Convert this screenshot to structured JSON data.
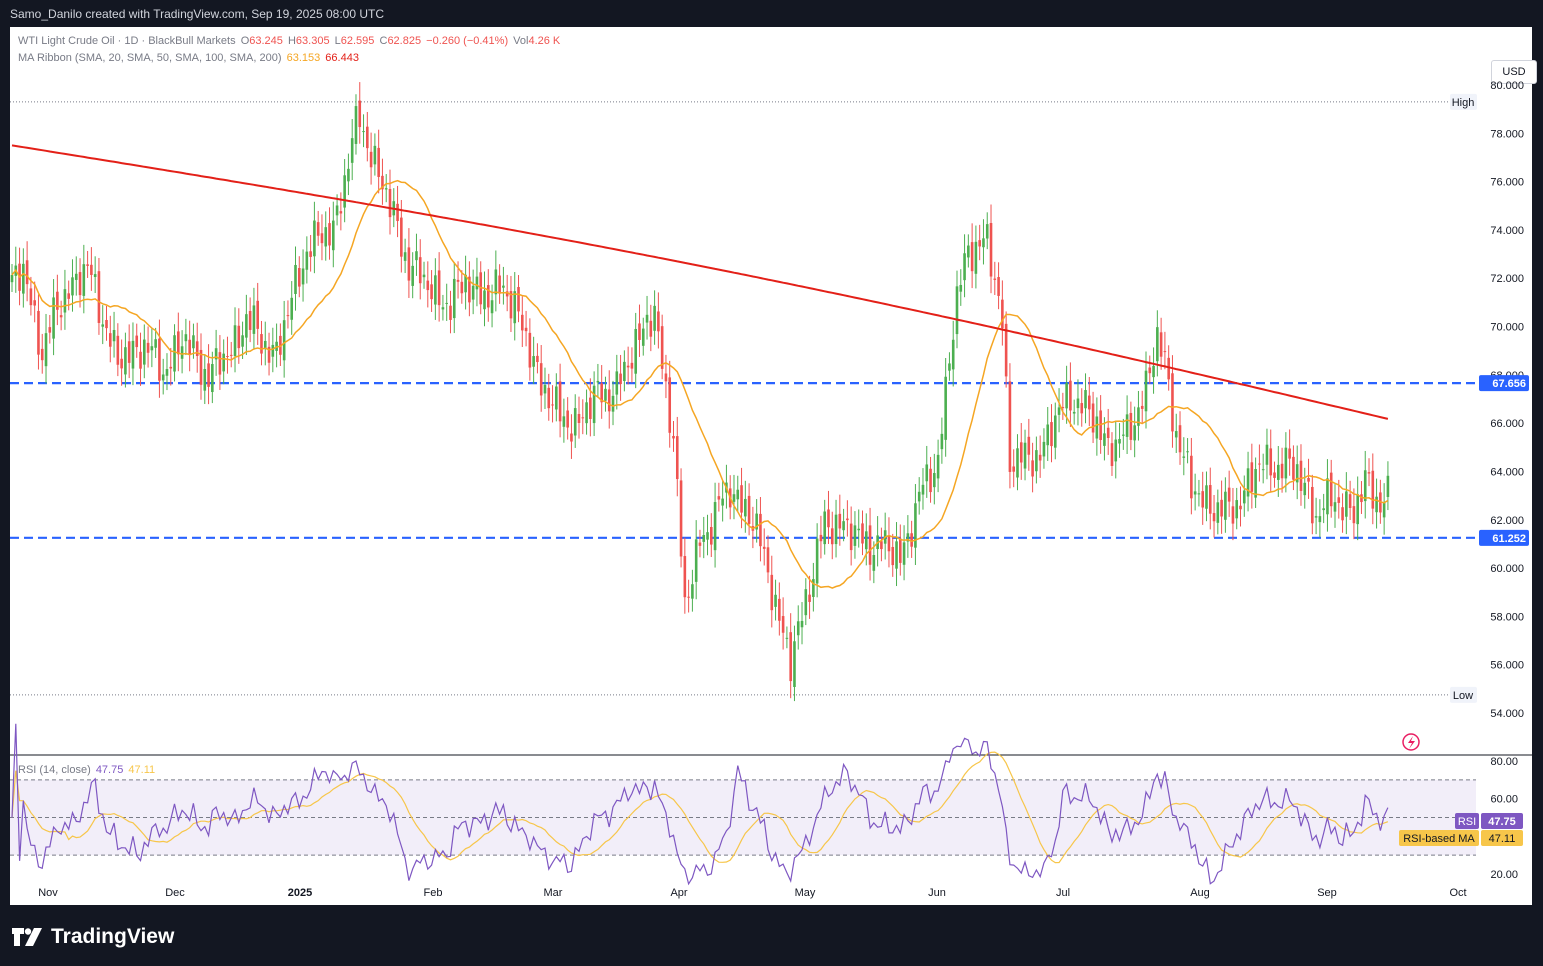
{
  "attribution": "Samo_Danilo created with TradingView.com, Sep 19, 2025 08:00 UTC",
  "brand": "TradingView",
  "symbol": {
    "name": "WTI Light Crude Oil · 1D · BlackBull Markets",
    "open_label": "O",
    "open": "63.245",
    "high_label": "H",
    "high": "63.305",
    "low_label": "L",
    "low": "62.595",
    "close_label": "C",
    "close": "62.825",
    "change": "−0.260 (−0.41%)",
    "vol_label": "Vol",
    "vol": "4.26 K"
  },
  "ma_ribbon": {
    "label": "MA Ribbon (SMA, 20, SMA, 50, SMA, 100, SMA, 200)",
    "v1": "63.153",
    "v2": "66.443"
  },
  "currency": "USD",
  "rsi": {
    "label": "RSI (14, close)",
    "value": "47.75",
    "ma_value": "47.11",
    "tag": "RSI",
    "ma_tag": "RSI-based MA"
  },
  "colors": {
    "up": "#4caf50",
    "down": "#ef5350",
    "ma20": "#f5a623",
    "ma200": "#e32018",
    "level": "#2962ff",
    "rsi": "#7e57c2",
    "rsi_ma": "#f7c64a"
  },
  "chart_data": {
    "type": "candlestick",
    "y_ticks": [
      "80.000",
      "78.000",
      "76.000",
      "74.000",
      "72.000",
      "70.000",
      "68.000",
      "66.000",
      "64.000",
      "62.000",
      "60.000",
      "58.000",
      "56.000",
      "54.000"
    ],
    "x_ticks": [
      "Nov",
      "Dec",
      "2025",
      "Feb",
      "Mar",
      "Apr",
      "May",
      "Jun",
      "Jul",
      "Aug",
      "Sep",
      "Oct"
    ],
    "ylim": [
      53.3,
      82.0
    ],
    "high_marker": {
      "label": "High",
      "value": 79.3
    },
    "low_marker": {
      "label": "Low",
      "value": 54.75
    },
    "levels": [
      {
        "value": 67.656,
        "label": "67.656"
      },
      {
        "value": 61.252,
        "label": "61.252"
      }
    ],
    "ma200_label": "66.443",
    "ohlc_anchors": [
      [
        0,
        71.8
      ],
      [
        3,
        72.3
      ],
      [
        8,
        69.0
      ],
      [
        12,
        70.7
      ],
      [
        15,
        71.6
      ],
      [
        20,
        72.4
      ],
      [
        28,
        68.5
      ],
      [
        35,
        69.3
      ],
      [
        40,
        68.1
      ],
      [
        45,
        69.5
      ],
      [
        52,
        68.0
      ],
      [
        58,
        69.0
      ],
      [
        62,
        70.4
      ],
      [
        66,
        69.4
      ],
      [
        70,
        68.9
      ],
      [
        78,
        73.3
      ],
      [
        85,
        74.0
      ],
      [
        90,
        77.6
      ],
      [
        92,
        78.6
      ],
      [
        95,
        77.2
      ],
      [
        98,
        75.9
      ],
      [
        105,
        72.6
      ],
      [
        110,
        71.7
      ],
      [
        116,
        70.8
      ],
      [
        120,
        72.0
      ],
      [
        126,
        71.0
      ],
      [
        130,
        71.9
      ],
      [
        135,
        69.9
      ],
      [
        140,
        67.7
      ],
      [
        145,
        66.2
      ],
      [
        150,
        66.0
      ],
      [
        155,
        67.3
      ],
      [
        160,
        67.3
      ],
      [
        165,
        69.3
      ],
      [
        168,
        70.4
      ],
      [
        170,
        70.2
      ],
      [
        175,
        65.6
      ],
      [
        178,
        58.3
      ],
      [
        182,
        61.1
      ],
      [
        190,
        63.3
      ],
      [
        195,
        62.3
      ],
      [
        200,
        60.0
      ],
      [
        203,
        57.8
      ],
      [
        206,
        56.0
      ],
      [
        210,
        58.8
      ],
      [
        215,
        61.7
      ],
      [
        220,
        61.9
      ],
      [
        225,
        61.0
      ],
      [
        230,
        61.0
      ],
      [
        235,
        60.4
      ],
      [
        240,
        62.9
      ],
      [
        245,
        64.5
      ],
      [
        248,
        68.8
      ],
      [
        250,
        71.0
      ],
      [
        253,
        73.3
      ],
      [
        258,
        73.5
      ],
      [
        262,
        70.2
      ],
      [
        264,
        64.6
      ],
      [
        268,
        64.4
      ],
      [
        272,
        64.8
      ],
      [
        276,
        66.1
      ],
      [
        280,
        67.2
      ],
      [
        285,
        66.4
      ],
      [
        290,
        65.1
      ],
      [
        295,
        65.4
      ],
      [
        300,
        67.5
      ],
      [
        303,
        69.5
      ],
      [
        305,
        68.4
      ],
      [
        308,
        65.7
      ],
      [
        312,
        63.3
      ],
      [
        318,
        62.5
      ],
      [
        322,
        62.3
      ],
      [
        326,
        63.2
      ],
      [
        330,
        64.2
      ],
      [
        335,
        64.3
      ],
      [
        340,
        64.0
      ],
      [
        343,
        63.1
      ],
      [
        345,
        62.1
      ],
      [
        350,
        63.0
      ],
      [
        355,
        62.2
      ],
      [
        358,
        63.6
      ],
      [
        362,
        62.8
      ]
    ],
    "rsi_range": [
      20,
      80
    ],
    "rsi_ticks": [
      "80.00",
      "60.00",
      "20.00"
    ],
    "rsi_bands": [
      70,
      50,
      30
    ]
  }
}
